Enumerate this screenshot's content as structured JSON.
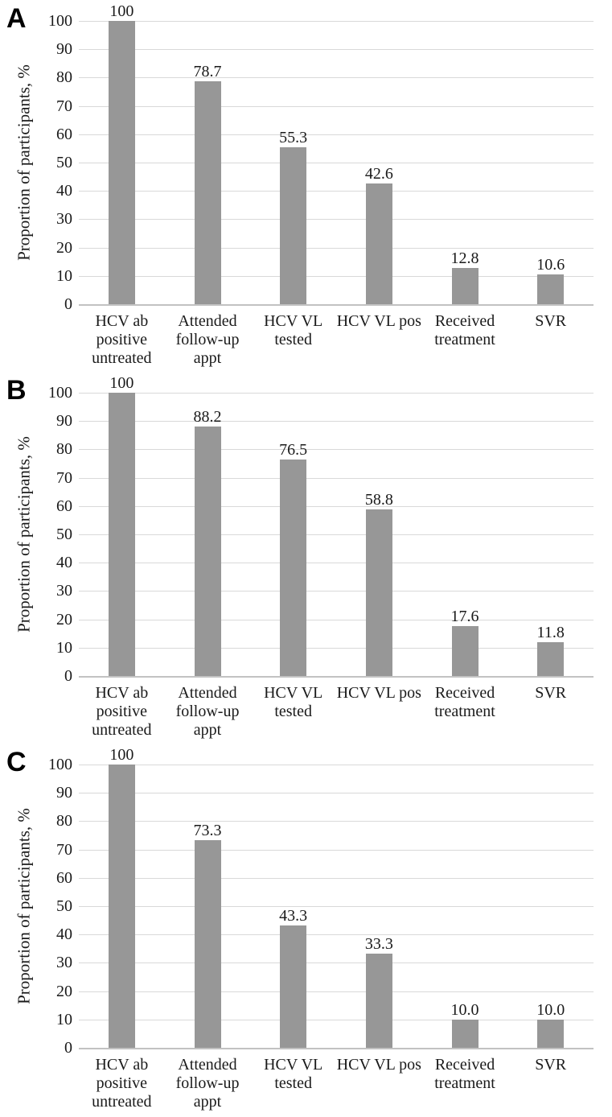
{
  "figure": {
    "panel_count": 3,
    "y_tick_labels": [
      "100",
      "90",
      "80",
      "70",
      "60",
      "50",
      "40",
      "30",
      "20",
      "10",
      "0"
    ],
    "colors": {
      "bar": "#979797",
      "gridline": "#d9d9d9",
      "axis_line": "#c2c2c2",
      "text": "#1a1a1a",
      "panel_letter": "#000000"
    }
  },
  "chart_data": [
    {
      "type": "bar",
      "panel": "A",
      "title": "",
      "xlabel": "",
      "ylabel": "Proportion of participants, %",
      "ylim": [
        0,
        100
      ],
      "ytick_step": 10,
      "grid": true,
      "legend": "none",
      "categories": [
        "HCV ab positive untreated",
        "Attended follow-up appt",
        "HCV VL tested",
        "HCV VL pos",
        "Received treatment",
        "SVR"
      ],
      "category_lines": [
        [
          "HCV ab",
          "positive",
          "untreated"
        ],
        [
          "Attended",
          "follow-up",
          "appt"
        ],
        [
          "HCV VL",
          "tested"
        ],
        [
          "HCV VL pos"
        ],
        [
          "Received",
          "treatment"
        ],
        [
          "SVR"
        ]
      ],
      "values": [
        100,
        78.7,
        55.3,
        42.6,
        12.8,
        10.6
      ],
      "value_labels": [
        "100",
        "78.7",
        "55.3",
        "42.6",
        "12.8",
        "10.6"
      ]
    },
    {
      "type": "bar",
      "panel": "B",
      "title": "",
      "xlabel": "",
      "ylabel": "Proportion of participants, %",
      "ylim": [
        0,
        100
      ],
      "ytick_step": 10,
      "grid": true,
      "legend": "none",
      "categories": [
        "HCV ab positive untreated",
        "Attended follow-up appt",
        "HCV VL tested",
        "HCV VL pos",
        "Received treatment",
        "SVR"
      ],
      "category_lines": [
        [
          "HCV ab",
          "positive",
          "untreated"
        ],
        [
          "Attended",
          "follow-up",
          "appt"
        ],
        [
          "HCV VL",
          "tested"
        ],
        [
          "HCV VL pos"
        ],
        [
          "Received",
          "treatment"
        ],
        [
          "SVR"
        ]
      ],
      "values": [
        100,
        88.2,
        76.5,
        58.8,
        17.6,
        11.8
      ],
      "value_labels": [
        "100",
        "88.2",
        "76.5",
        "58.8",
        "17.6",
        "11.8"
      ]
    },
    {
      "type": "bar",
      "panel": "C",
      "title": "",
      "xlabel": "",
      "ylabel": "Proportion of participants, %",
      "ylim": [
        0,
        100
      ],
      "ytick_step": 10,
      "grid": true,
      "legend": "none",
      "categories": [
        "HCV ab positive untreated",
        "Attended follow-up appt",
        "HCV VL tested",
        "HCV VL pos",
        "Received treatment",
        "SVR"
      ],
      "category_lines": [
        [
          "HCV ab",
          "positive",
          "untreated"
        ],
        [
          "Attended",
          "follow-up",
          "appt"
        ],
        [
          "HCV VL",
          "tested"
        ],
        [
          "HCV VL pos"
        ],
        [
          "Received",
          "treatment"
        ],
        [
          "SVR"
        ]
      ],
      "values": [
        100,
        73.3,
        43.3,
        33.3,
        10.0,
        10.0
      ],
      "value_labels": [
        "100",
        "73.3",
        "43.3",
        "33.3",
        "10.0",
        "10.0"
      ]
    }
  ]
}
